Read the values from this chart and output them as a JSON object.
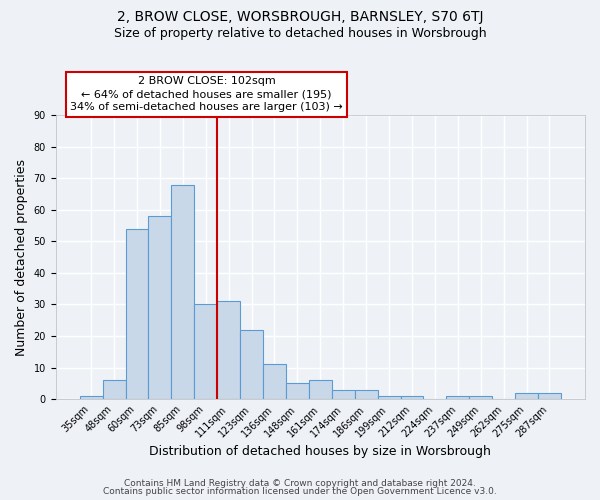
{
  "title": "2, BROW CLOSE, WORSBROUGH, BARNSLEY, S70 6TJ",
  "subtitle": "Size of property relative to detached houses in Worsbrough",
  "xlabel": "Distribution of detached houses by size in Worsbrough",
  "ylabel": "Number of detached properties",
  "categories": [
    "35sqm",
    "48sqm",
    "60sqm",
    "73sqm",
    "85sqm",
    "98sqm",
    "111sqm",
    "123sqm",
    "136sqm",
    "148sqm",
    "161sqm",
    "174sqm",
    "186sqm",
    "199sqm",
    "212sqm",
    "224sqm",
    "237sqm",
    "249sqm",
    "262sqm",
    "275sqm",
    "287sqm"
  ],
  "values": [
    1,
    6,
    54,
    58,
    68,
    30,
    31,
    22,
    11,
    5,
    6,
    3,
    3,
    1,
    1,
    0,
    1,
    1,
    0,
    2,
    2
  ],
  "bar_color": "#c8d8e8",
  "bar_edge_color": "#5b9bd5",
  "vline_color": "#cc0000",
  "annotation_text": "2 BROW CLOSE: 102sqm\n← 64% of detached houses are smaller (195)\n34% of semi-detached houses are larger (103) →",
  "annotation_box_color": "#ffffff",
  "annotation_box_edge_color": "#cc0000",
  "ylim": [
    0,
    90
  ],
  "yticks": [
    0,
    10,
    20,
    30,
    40,
    50,
    60,
    70,
    80,
    90
  ],
  "footer_line1": "Contains HM Land Registry data © Crown copyright and database right 2024.",
  "footer_line2": "Contains public sector information licensed under the Open Government Licence v3.0.",
  "background_color": "#eef2f7",
  "plot_bg_color": "#eef2f7",
  "grid_color": "#ffffff",
  "title_fontsize": 10,
  "subtitle_fontsize": 9,
  "axis_label_fontsize": 9,
  "tick_fontsize": 7,
  "annotation_fontsize": 8,
  "footer_fontsize": 6.5
}
